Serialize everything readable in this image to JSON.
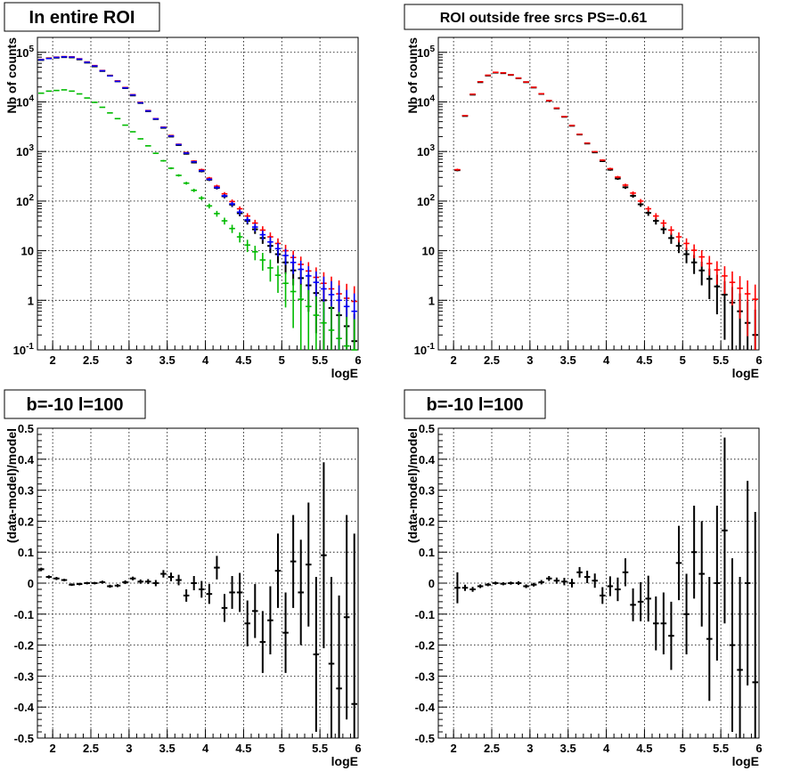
{
  "chart_data": [
    {
      "type": "scatter",
      "title": "In entire ROI",
      "xlabel": "logE",
      "ylabel": "Nb of counts",
      "xlim": [
        1.8,
        6.0
      ],
      "ylim": [
        0.1,
        200000
      ],
      "yscale": "log",
      "grid": true,
      "xticks": [
        "2",
        "2.5",
        "3",
        "3.5",
        "4",
        "4.5",
        "5",
        "5.5",
        "6"
      ],
      "yticks": [
        "10^-1",
        "1",
        "10",
        "10^2",
        "10^3",
        "10^4",
        "10^5"
      ],
      "x": [
        1.85,
        1.95,
        2.05,
        2.15,
        2.25,
        2.35,
        2.45,
        2.55,
        2.65,
        2.75,
        2.85,
        2.95,
        3.05,
        3.15,
        3.25,
        3.35,
        3.45,
        3.55,
        3.65,
        3.75,
        3.85,
        3.95,
        4.05,
        4.15,
        4.25,
        4.35,
        4.45,
        4.55,
        4.65,
        4.75,
        4.85,
        4.95,
        5.05,
        5.15,
        5.25,
        5.35,
        5.45,
        5.55,
        5.65,
        5.75,
        5.85,
        5.95
      ],
      "series": [
        {
          "color": "#000000",
          "values": [
            70000,
            76000,
            78000,
            80000,
            79000,
            72000,
            62000,
            52000,
            42000,
            34000,
            26000,
            19000,
            13500,
            9500,
            6500,
            4500,
            3000,
            2000,
            1350,
            900,
            600,
            400,
            270,
            185,
            125,
            85,
            57,
            40,
            27,
            18,
            12.5,
            8.5,
            5.8,
            4.0,
            2.8,
            2.0,
            1.4,
            1.0,
            0.7,
            0.5,
            0.3,
            0.15
          ]
        },
        {
          "color": "#ff0000",
          "values": [
            72000,
            76000,
            80000,
            82000,
            81000,
            74000,
            64000,
            54000,
            43000,
            34000,
            26500,
            19500,
            14000,
            9800,
            6700,
            4600,
            3100,
            2100,
            1400,
            950,
            640,
            430,
            290,
            200,
            140,
            98,
            70,
            50,
            36,
            26,
            19,
            14,
            10,
            7.3,
            5.3,
            3.9,
            2.9,
            2.2,
            1.7,
            1.35,
            1.1,
            0.95
          ]
        },
        {
          "color": "#0000ff",
          "values": [
            71000,
            75000,
            79000,
            81000,
            80000,
            73000,
            63000,
            53000,
            42500,
            33500,
            26000,
            19200,
            13800,
            9600,
            6600,
            4550,
            3050,
            2050,
            1380,
            930,
            620,
            410,
            275,
            188,
            128,
            88,
            60,
            42,
            30,
            21,
            15,
            11,
            8,
            5.8,
            4.2,
            3.1,
            2.3,
            1.7,
            1.3,
            1.0,
            0.75,
            0.6
          ]
        },
        {
          "color": "#00bb00",
          "values": [
            15000,
            16500,
            17000,
            17500,
            16500,
            14500,
            12000,
            9800,
            7800,
            6000,
            4600,
            3400,
            2500,
            1800,
            1300,
            920,
            650,
            460,
            330,
            230,
            165,
            115,
            80,
            56,
            40,
            28,
            19,
            13,
            9.5,
            6.5,
            4.5,
            3.2,
            2.2,
            1.5,
            1.05,
            0.75,
            0.5,
            0.35,
            0.25,
            0.17,
            0.12,
            0.1
          ]
        }
      ]
    },
    {
      "type": "scatter",
      "title": "ROI outside free srcs PS=-0.61",
      "xlabel": "logE",
      "ylabel": "Nb of counts",
      "xlim": [
        1.8,
        6.0
      ],
      "ylim": [
        0.1,
        200000
      ],
      "yscale": "log",
      "grid": true,
      "xticks": [
        "2",
        "2.5",
        "3",
        "3.5",
        "4",
        "4.5",
        "5",
        "5.5",
        "6"
      ],
      "yticks": [
        "10^-1",
        "1",
        "10",
        "10^2",
        "10^3",
        "10^4",
        "10^5"
      ],
      "x": [
        2.05,
        2.15,
        2.25,
        2.35,
        2.45,
        2.55,
        2.65,
        2.75,
        2.85,
        2.95,
        3.05,
        3.15,
        3.25,
        3.35,
        3.45,
        3.55,
        3.65,
        3.75,
        3.85,
        3.95,
        4.05,
        4.15,
        4.25,
        4.35,
        4.45,
        4.55,
        4.65,
        4.75,
        4.85,
        4.95,
        5.05,
        5.15,
        5.25,
        5.35,
        5.45,
        5.55,
        5.65,
        5.75,
        5.85,
        5.95
      ],
      "series": [
        {
          "color": "#000000",
          "values": [
            420,
            5200,
            14000,
            25000,
            34000,
            39000,
            38000,
            35000,
            30000,
            25000,
            19500,
            14500,
            10500,
            7400,
            5000,
            3300,
            2200,
            1450,
            960,
            640,
            430,
            285,
            190,
            128,
            86,
            58,
            40,
            27,
            18,
            12.5,
            8.5,
            5.8,
            4.0,
            2.7,
            1.9,
            1.3,
            0.9,
            0.6,
            0.35,
            0.2
          ]
        },
        {
          "color": "#ff0000",
          "values": [
            430,
            5300,
            14300,
            25500,
            34500,
            39500,
            38500,
            35300,
            30200,
            25200,
            19700,
            14600,
            10600,
            7500,
            5050,
            3350,
            2230,
            1480,
            990,
            670,
            450,
            305,
            210,
            145,
            100,
            70,
            50,
            36,
            26,
            19,
            14,
            10.2,
            7.5,
            5.5,
            4.1,
            3.1,
            2.3,
            1.75,
            1.35,
            1.05
          ]
        }
      ]
    },
    {
      "type": "scatter",
      "title": "b=-10 l=100",
      "xlabel": "logE",
      "ylabel": "(data-model)/model",
      "xlim": [
        1.8,
        6.0
      ],
      "ylim": [
        -0.5,
        0.5
      ],
      "grid": true,
      "xticks": [
        "2",
        "2.5",
        "3",
        "3.5",
        "4",
        "4.5",
        "5",
        "5.5",
        "6"
      ],
      "yticks": [
        "-0.5",
        "-0.4",
        "-0.3",
        "-0.2",
        "-0.1",
        "0",
        "0.1",
        "0.2",
        "0.3",
        "0.4",
        "0.5"
      ],
      "series": [
        {
          "color": "#000000",
          "x": [
            1.85,
            1.95,
            2.05,
            2.15,
            2.25,
            2.35,
            2.45,
            2.55,
            2.65,
            2.75,
            2.85,
            2.95,
            3.05,
            3.15,
            3.25,
            3.35,
            3.45,
            3.55,
            3.65,
            3.75,
            3.85,
            3.95,
            4.05,
            4.15,
            4.25,
            4.35,
            4.45,
            4.55,
            4.65,
            4.75,
            4.85,
            4.95,
            5.05,
            5.15,
            5.25,
            5.35,
            5.45,
            5.55,
            5.65,
            5.75,
            5.85,
            5.95
          ],
          "values": [
            0.045,
            0.02,
            0.015,
            0.01,
            -0.005,
            -0.003,
            0.0,
            0.0,
            0.003,
            -0.01,
            -0.008,
            0.003,
            0.015,
            0.005,
            0.005,
            0.0,
            0.03,
            0.02,
            0.01,
            -0.04,
            0.0,
            -0.02,
            -0.035,
            0.05,
            -0.08,
            -0.03,
            -0.03,
            -0.13,
            -0.09,
            -0.19,
            -0.12,
            0.04,
            -0.16,
            0.07,
            -0.03,
            0.06,
            -0.23,
            0.09,
            -0.26,
            -0.34,
            -0.11,
            -0.39
          ],
          "errors": [
            0.005,
            0.005,
            0.005,
            0.004,
            0.004,
            0.004,
            0.004,
            0.004,
            0.005,
            0.005,
            0.005,
            0.006,
            0.006,
            0.007,
            0.008,
            0.01,
            0.012,
            0.014,
            0.017,
            0.02,
            0.023,
            0.027,
            0.032,
            0.038,
            0.045,
            0.053,
            0.063,
            0.074,
            0.087,
            0.1,
            0.11,
            0.12,
            0.13,
            0.15,
            0.17,
            0.2,
            0.25,
            0.3,
            0.28,
            0.3,
            0.33,
            0.55
          ]
        }
      ]
    },
    {
      "type": "scatter",
      "title": "b=-10 l=100",
      "xlabel": "logE",
      "ylabel": "(data-model)/model",
      "xlim": [
        1.8,
        6.0
      ],
      "ylim": [
        -0.5,
        0.5
      ],
      "grid": true,
      "xticks": [
        "2",
        "2.5",
        "3",
        "3.5",
        "4",
        "4.5",
        "5",
        "5.5",
        "6"
      ],
      "yticks": [
        "-0.5",
        "-0.4",
        "-0.3",
        "-0.2",
        "-0.1",
        "0",
        "0.1",
        "0.2",
        "0.3",
        "0.4",
        "0.5"
      ],
      "series": [
        {
          "color": "#000000",
          "x": [
            2.05,
            2.15,
            2.25,
            2.35,
            2.45,
            2.55,
            2.65,
            2.75,
            2.85,
            2.95,
            3.05,
            3.15,
            3.25,
            3.35,
            3.45,
            3.55,
            3.65,
            3.75,
            3.85,
            3.95,
            4.05,
            4.15,
            4.25,
            4.35,
            4.45,
            4.55,
            4.65,
            4.75,
            4.85,
            4.95,
            5.05,
            5.15,
            5.25,
            5.35,
            5.45,
            5.55,
            5.65,
            5.75,
            5.85,
            5.95
          ],
          "values": [
            -0.015,
            -0.015,
            -0.02,
            -0.01,
            -0.005,
            0.0,
            -0.002,
            0.0,
            0.0,
            -0.01,
            -0.005,
            0.003,
            0.015,
            0.008,
            0.005,
            0.0,
            0.035,
            0.02,
            0.008,
            -0.04,
            -0.01,
            -0.02,
            0.035,
            -0.07,
            -0.06,
            -0.05,
            -0.13,
            -0.13,
            -0.17,
            0.065,
            -0.1,
            0.1,
            0.03,
            -0.18,
            0.0,
            0.17,
            -0.2,
            -0.28,
            0.0,
            -0.32
          ],
          "errors": [
            0.05,
            0.01,
            0.008,
            0.006,
            0.005,
            0.005,
            0.005,
            0.005,
            0.006,
            0.006,
            0.006,
            0.007,
            0.008,
            0.01,
            0.012,
            0.014,
            0.017,
            0.02,
            0.023,
            0.027,
            0.032,
            0.038,
            0.045,
            0.053,
            0.063,
            0.074,
            0.087,
            0.1,
            0.11,
            0.12,
            0.13,
            0.15,
            0.17,
            0.2,
            0.25,
            0.3,
            0.28,
            0.3,
            0.33,
            0.55
          ]
        }
      ]
    }
  ]
}
